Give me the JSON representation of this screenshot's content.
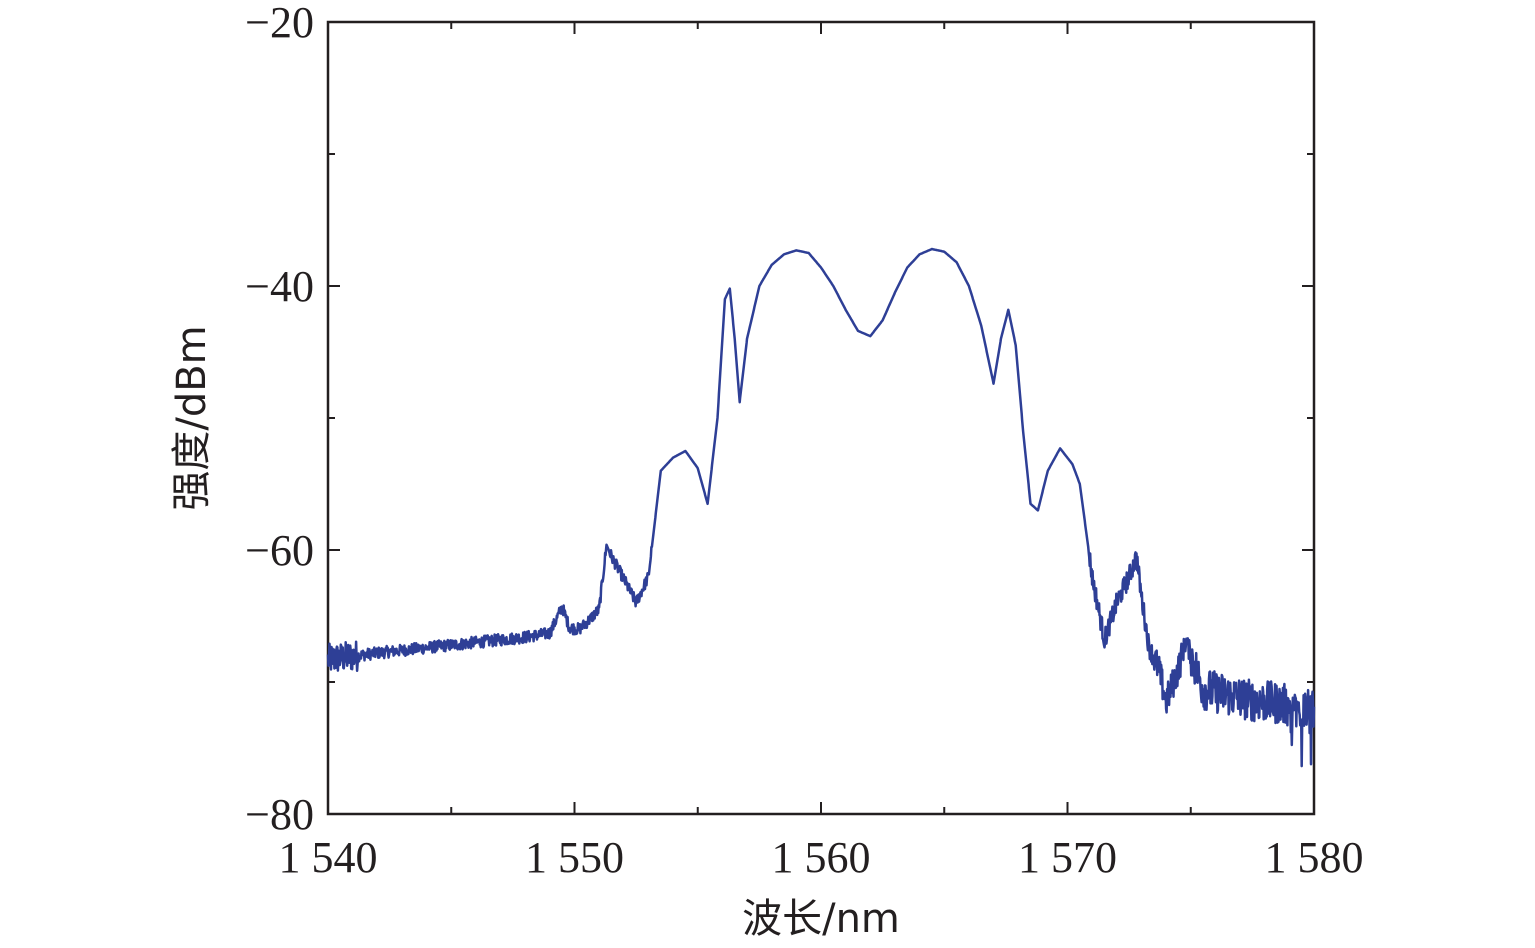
{
  "chart_data": {
    "type": "line",
    "title": "",
    "xlabel": "波长/nm",
    "ylabel": "强度/dBm",
    "xlim": [
      1540,
      1580
    ],
    "ylim": [
      -80,
      -20
    ],
    "xticks": [
      1540,
      1550,
      1560,
      1570,
      1580
    ],
    "xtick_labels": [
      "1 540",
      "1 550",
      "1 560",
      "1 570",
      "1 580"
    ],
    "yticks": [
      -80,
      -60,
      -40,
      -20
    ],
    "ytick_labels": [
      "−80",
      "−60",
      "−40",
      "−20"
    ],
    "grid": false,
    "line_color": "#2e3f96",
    "series": [
      {
        "x": [
          1540,
          1542,
          1544,
          1546,
          1548,
          1549,
          1549.5,
          1549.8,
          1550.2,
          1550.6,
          1551.0,
          1551.3,
          1551.5,
          1552.0,
          1552.5,
          1553.0,
          1553.5,
          1554.0,
          1554.5,
          1555.0,
          1555.4,
          1555.8,
          1556.1,
          1556.3,
          1556.5,
          1556.7,
          1557.0,
          1557.5,
          1558.0,
          1558.5,
          1559.0,
          1559.5,
          1560.0,
          1560.5,
          1561.0,
          1561.5,
          1562.0,
          1562.5,
          1563.0,
          1563.5,
          1564.0,
          1564.5,
          1565.0,
          1565.5,
          1566.0,
          1566.5,
          1567.0,
          1567.3,
          1567.6,
          1567.9,
          1568.2,
          1568.5,
          1568.8,
          1569.2,
          1569.7,
          1570.2,
          1570.5,
          1571.0,
          1571.5,
          1572.0,
          1572.5,
          1572.8,
          1573.0,
          1573.3,
          1573.7,
          1574.0,
          1574.2,
          1574.5,
          1574.8,
          1575.5,
          1576.5,
          1577.5,
          1578.5,
          1579.5,
          1580
        ],
        "y": [
          -68.3,
          -67.8,
          -67.4,
          -67.0,
          -66.6,
          -66.3,
          -64.3,
          -65.9,
          -66.0,
          -65.3,
          -64.5,
          -59.6,
          -60.5,
          -62.2,
          -64.0,
          -62.0,
          -54.0,
          -53.0,
          -52.5,
          -53.8,
          -56.5,
          -50.0,
          -41.0,
          -40.2,
          -44.0,
          -48.8,
          -44.0,
          -40.0,
          -38.4,
          -37.6,
          -37.3,
          -37.5,
          -38.6,
          -40.0,
          -41.8,
          -43.4,
          -43.8,
          -42.6,
          -40.5,
          -38.6,
          -37.6,
          -37.2,
          -37.4,
          -38.2,
          -40.0,
          -43.0,
          -47.4,
          -44.0,
          -41.8,
          -44.5,
          -51.0,
          -56.5,
          -57.0,
          -54.0,
          -52.3,
          -53.5,
          -55.0,
          -62.0,
          -66.8,
          -64.0,
          -62.0,
          -60.5,
          -63.5,
          -67.3,
          -69.0,
          -71.5,
          -70.5,
          -69.0,
          -66.9,
          -70.5,
          -71.0,
          -71.4,
          -71.6,
          -72.0,
          -72.3
        ]
      }
    ]
  }
}
